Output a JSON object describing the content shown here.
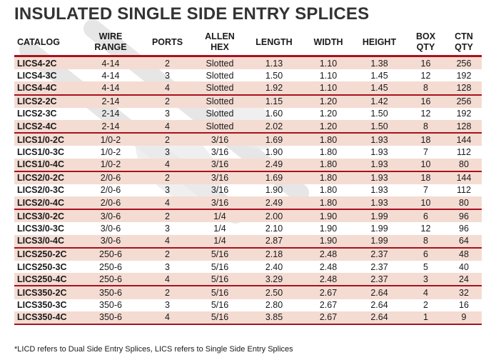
{
  "title": "INSULATED SINGLE SIDE ENTRY SPLICES",
  "columns": [
    {
      "key": "catalog",
      "lines": [
        "CATALOG"
      ]
    },
    {
      "key": "wire",
      "lines": [
        "WIRE",
        "RANGE"
      ]
    },
    {
      "key": "ports",
      "lines": [
        "PORTS"
      ]
    },
    {
      "key": "allen",
      "lines": [
        "ALLEN",
        "HEX"
      ]
    },
    {
      "key": "length",
      "lines": [
        "LENGTH"
      ]
    },
    {
      "key": "width",
      "lines": [
        "WIDTH"
      ]
    },
    {
      "key": "height",
      "lines": [
        "HEIGHT"
      ]
    },
    {
      "key": "box",
      "lines": [
        "BOX",
        "QTY"
      ]
    },
    {
      "key": "ctn",
      "lines": [
        "CTN",
        "QTY"
      ]
    }
  ],
  "groups": [
    {
      "rows": [
        [
          "LICS4-2C",
          "4-14",
          "2",
          "Slotted",
          "1.13",
          "1.10",
          "1.38",
          "16",
          "256"
        ],
        [
          "LICS4-3C",
          "4-14",
          "3",
          "Slotted",
          "1.50",
          "1.10",
          "1.45",
          "12",
          "192"
        ],
        [
          "LICS4-4C",
          "4-14",
          "4",
          "Slotted",
          "1.92",
          "1.10",
          "1.45",
          "8",
          "128"
        ]
      ]
    },
    {
      "rows": [
        [
          "LICS2-2C",
          "2-14",
          "2",
          "Slotted",
          "1.15",
          "1.20",
          "1.42",
          "16",
          "256"
        ],
        [
          "LICS2-3C",
          "2-14",
          "3",
          "Slotted",
          "1.60",
          "1.20",
          "1.50",
          "12",
          "192"
        ],
        [
          "LICS2-4C",
          "2-14",
          "4",
          "Slotted",
          "2.02",
          "1.20",
          "1.50",
          "8",
          "128"
        ]
      ]
    },
    {
      "rows": [
        [
          "LICS1/0-2C",
          "1/0-2",
          "2",
          "3/16",
          "1.69",
          "1.80",
          "1.93",
          "18",
          "144"
        ],
        [
          "LICS1/0-3C",
          "1/0-2",
          "3",
          "3/16",
          "1.90",
          "1.80",
          "1.93",
          "7",
          "112"
        ],
        [
          "LICS1/0-4C",
          "1/0-2",
          "4",
          "3/16",
          "2.49",
          "1.80",
          "1.93",
          "10",
          "80"
        ]
      ]
    },
    {
      "rows": [
        [
          "LICS2/0-2C",
          "2/0-6",
          "2",
          "3/16",
          "1.69",
          "1.80",
          "1.93",
          "18",
          "144"
        ],
        [
          "LICS2/0-3C",
          "2/0-6",
          "3",
          "3/16",
          "1.90",
          "1.80",
          "1.93",
          "7",
          "112"
        ],
        [
          "LICS2/0-4C",
          "2/0-6",
          "4",
          "3/16",
          "2.49",
          "1.80",
          "1.93",
          "10",
          "80"
        ]
      ]
    },
    {
      "rows": [
        [
          "LICS3/0-2C",
          "3/0-6",
          "2",
          "1/4",
          "2.00",
          "1.90",
          "1.99",
          "6",
          "96"
        ],
        [
          "LICS3/0-3C",
          "3/0-6",
          "3",
          "1/4",
          "2.10",
          "1.90",
          "1.99",
          "12",
          "96"
        ],
        [
          "LICS3/0-4C",
          "3/0-6",
          "4",
          "1/4",
          "2.87",
          "1.90",
          "1.99",
          "8",
          "64"
        ]
      ]
    },
    {
      "rows": [
        [
          "LICS250-2C",
          "250-6",
          "2",
          "5/16",
          "2.18",
          "2.48",
          "2.37",
          "6",
          "48"
        ],
        [
          "LICS250-3C",
          "250-6",
          "3",
          "5/16",
          "2.40",
          "2.48",
          "2.37",
          "5",
          "40"
        ],
        [
          "LICS250-4C",
          "250-6",
          "4",
          "5/16",
          "3.29",
          "2.48",
          "2.37",
          "3",
          "24"
        ]
      ]
    },
    {
      "rows": [
        [
          "LICS350-2C",
          "350-6",
          "2",
          "5/16",
          "2.50",
          "2.67",
          "2.64",
          "4",
          "32"
        ],
        [
          "LICS350-3C",
          "350-6",
          "3",
          "5/16",
          "2.80",
          "2.67",
          "2.64",
          "2",
          "16"
        ],
        [
          "LICS350-4C",
          "350-6",
          "4",
          "5/16",
          "3.85",
          "2.67",
          "2.64",
          "1",
          "9"
        ]
      ]
    }
  ],
  "footnote": "*LICD refers to Dual Side Entry Splices, LICS refers to Single Side Entry Splices",
  "colors": {
    "accent": "#a8121e",
    "shade": "#f4dcd3",
    "watermark": "#ececec"
  }
}
